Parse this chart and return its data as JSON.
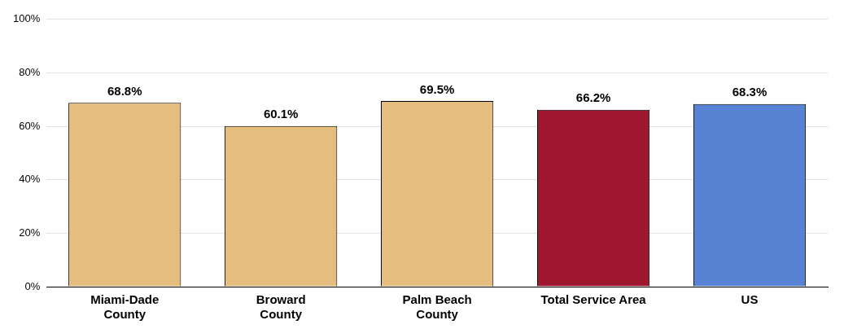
{
  "chart_data": {
    "type": "bar",
    "categories": [
      "Miami-Dade\nCounty",
      "Broward\nCounty",
      "Palm Beach\nCounty",
      "Total Service Area",
      "US"
    ],
    "values": [
      68.8,
      60.1,
      69.5,
      66.2,
      68.3
    ],
    "colors": [
      "#e5bd7f",
      "#e5bd7f",
      "#e5bd7f",
      "#a01830",
      "#5882d3"
    ],
    "value_labels": [
      "68.8%",
      "60.1%",
      "69.5%",
      "66.2%",
      "68.3%"
    ],
    "ylim": [
      0,
      100
    ],
    "yticks": [
      {
        "value": 0,
        "label": "0%"
      },
      {
        "value": 20,
        "label": "20%"
      },
      {
        "value": 40,
        "label": "40%"
      },
      {
        "value": 60,
        "label": "60%"
      },
      {
        "value": 80,
        "label": "80%"
      },
      {
        "value": 100,
        "label": "100%"
      }
    ],
    "grid": "y",
    "legend": false
  }
}
